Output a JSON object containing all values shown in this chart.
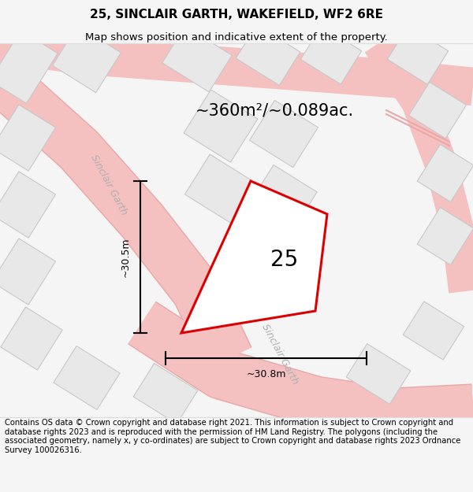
{
  "title": "25, SINCLAIR GARTH, WAKEFIELD, WF2 6RE",
  "subtitle": "Map shows position and indicative extent of the property.",
  "area_text": "~360m²/~0.089ac.",
  "plot_number": "25",
  "dim_width": "~30.8m",
  "dim_height": "~30.5m",
  "footer": "Contains OS data © Crown copyright and database right 2021. This information is subject to Crown copyright and database rights 2023 and is reproduced with the permission of HM Land Registry. The polygons (including the associated geometry, namely x, y co-ordinates) are subject to Crown copyright and database rights 2023 Ordnance Survey 100026316.",
  "bg_color": "#f5f5f5",
  "map_bg": "#ffffff",
  "road_color": "#f5c0c0",
  "road_edge_color": "#e8a8a8",
  "building_color": "#e8e8e8",
  "building_edge": "#c8c8c8",
  "plot_color": "#dd0000",
  "plot_fill": "#ffffff",
  "street_label_color": "#b0b0b0",
  "title_color": "#000000",
  "footer_color": "#000000",
  "road_label": "Sinclair Garth",
  "figsize": [
    6.0,
    6.25
  ],
  "dpi": 100,
  "title_fontsize": 11,
  "subtitle_fontsize": 9.5,
  "area_fontsize": 15,
  "plot_num_fontsize": 20,
  "dim_fontsize": 9,
  "street_fontsize": 9,
  "footer_fontsize": 7.2
}
